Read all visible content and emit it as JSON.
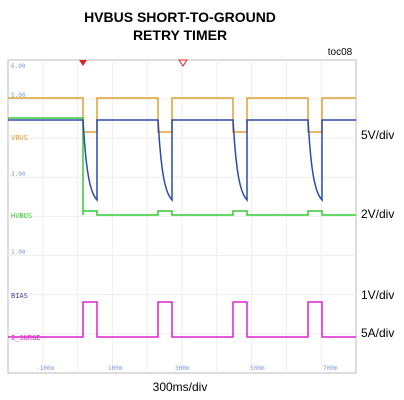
{
  "title_line1": "HVBUS SHORT-TO-GROUND",
  "title_line2": "RETRY TIMER",
  "figure_id": "toc08",
  "left_scale_labels": [
    "6.00",
    "5.00",
    "3.00",
    "1.00"
  ],
  "time_labels": [
    "-100m",
    "100m",
    "300m",
    "500m",
    "700m"
  ],
  "trace_labels": [
    "VBUS",
    "HVBUS",
    "BIAS",
    "I_SURGE"
  ],
  "div_labels": [
    "5V/div",
    "2V/div",
    "1V/div",
    "5A/div"
  ],
  "time_div": "300ms/div"
}
